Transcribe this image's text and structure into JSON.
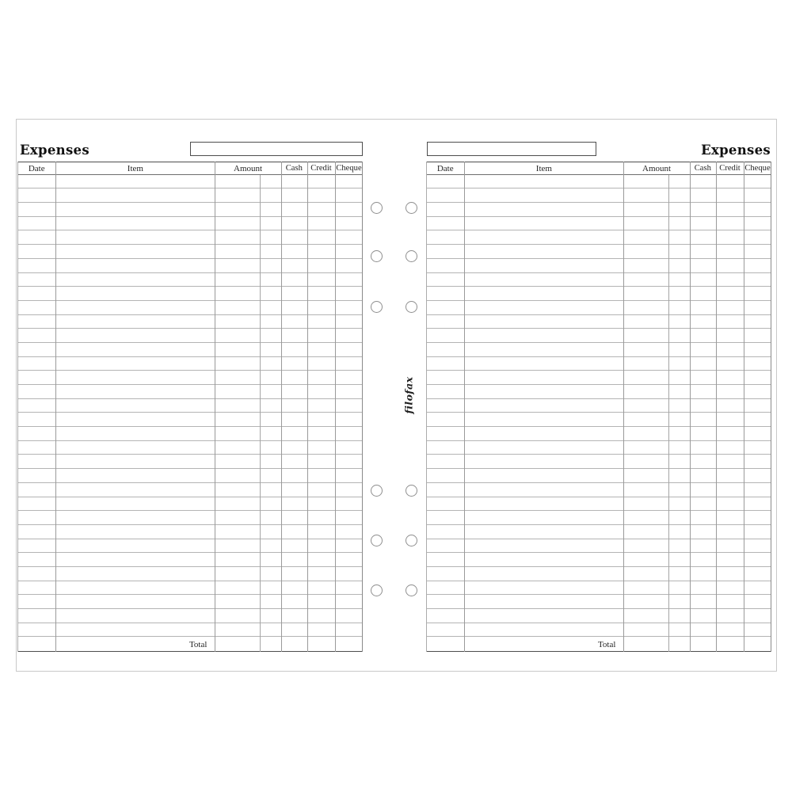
{
  "brand": {
    "logo_text": "filofax"
  },
  "colors": {
    "paper": "#ffffff",
    "frame": "#c9c9c9",
    "rule_dark": "#4d4d4d",
    "rule_light": "#b4b4b4",
    "rule_vertical": "#9a9a9a",
    "text": "#1a1a1a"
  },
  "pages": [
    {
      "side": "left",
      "title": "Expenses",
      "entry_box_value": ""
    },
    {
      "side": "right",
      "title": "Expenses",
      "entry_box_value": ""
    }
  ],
  "ledger": {
    "columns": [
      "Date",
      "Item",
      "Amount",
      "Cash",
      "Credit",
      "Cheque"
    ],
    "amount_has_subcolumn": true,
    "blank_row_count": 33,
    "total_label": "Total"
  },
  "binder": {
    "hole_group_count": 2,
    "holes_per_group": 6
  }
}
